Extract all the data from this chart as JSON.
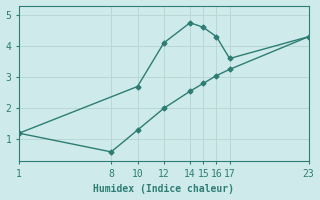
{
  "line1_x": [
    1,
    10,
    12,
    14,
    15,
    16,
    17,
    23
  ],
  "line1_y": [
    1.2,
    2.7,
    4.1,
    4.75,
    4.6,
    4.3,
    3.6,
    4.3
  ],
  "line2_x": [
    1,
    8,
    10,
    12,
    14,
    15,
    16,
    17,
    23
  ],
  "line2_y": [
    1.2,
    0.6,
    1.3,
    2.0,
    2.55,
    2.8,
    3.05,
    3.25,
    4.3
  ],
  "xticks": [
    1,
    8,
    10,
    12,
    14,
    15,
    16,
    17,
    23
  ],
  "yticks": [
    1,
    2,
    3,
    4,
    5
  ],
  "xlim": [
    1,
    23
  ],
  "ylim": [
    0.3,
    5.3
  ],
  "xlabel": "Humidex (Indice chaleur)",
  "line_color": "#2d7d74",
  "bg_color": "#ceeaea",
  "grid_color": "#b8d8d5",
  "marker": "D",
  "marker_size": 2.5,
  "line_width": 1.0,
  "xlabel_fontsize": 7,
  "tick_fontsize": 7
}
